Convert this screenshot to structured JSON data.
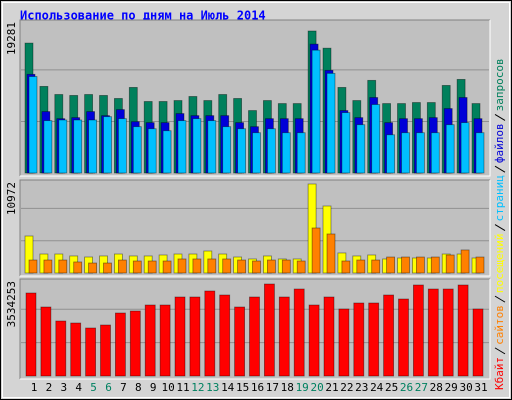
{
  "chart_data": [
    {
      "type": "bar",
      "title": "Использование по дням на Июль 2014",
      "ylim": [
        0,
        19281
      ],
      "yticks": [
        19281
      ],
      "series": [
        {
          "name": "запросов",
          "color": "#00805c",
          "values": [
            17640,
            11760,
            10660,
            10530,
            10660,
            10530,
            10120,
            11620,
            9710,
            9710,
            9840,
            10390,
            9840,
            10660,
            10120,
            8480,
            9840,
            9430,
            9430,
            19281,
            16950,
            11620,
            9840,
            12580,
            9430,
            9430,
            9570,
            9570,
            11890,
            12710,
            9430
          ]
        },
        {
          "name": "файлов",
          "color": "#0000d8",
          "values": [
            13400,
            8340,
            7380,
            7520,
            8340,
            7790,
            8610,
            6970,
            6840,
            6840,
            8070,
            7790,
            7790,
            7790,
            6840,
            6290,
            7380,
            7380,
            7380,
            17500,
            13940,
            8480,
            7520,
            10250,
            6840,
            7380,
            7380,
            7520,
            8750,
            10250,
            7380
          ]
        },
        {
          "name": "страниц",
          "color": "#00c0ff",
          "values": [
            13100,
            7110,
            7200,
            7200,
            7200,
            7650,
            7380,
            6290,
            6010,
            5740,
            7110,
            7380,
            7110,
            6290,
            6010,
            5470,
            6010,
            5470,
            5470,
            16680,
            13530,
            8200,
            6560,
            9300,
            5190,
            5470,
            5470,
            5470,
            6560,
            6840,
            5470
          ]
        }
      ]
    },
    {
      "type": "bar",
      "ylim": [
        0,
        10972
      ],
      "yticks": [
        10972
      ],
      "series": [
        {
          "name": "посещений",
          "color": "#ffff00",
          "values": [
            4560,
            2340,
            2340,
            2100,
            1970,
            2100,
            2340,
            2100,
            2100,
            2220,
            2340,
            2340,
            2710,
            2340,
            1970,
            1730,
            2100,
            1730,
            1730,
            10972,
            8260,
            2470,
            2100,
            2220,
            1730,
            1850,
            1850,
            1850,
            2340,
            2340,
            1850
          ]
        },
        {
          "name": "сайтов",
          "color": "#ff8000",
          "values": [
            1600,
            1600,
            1600,
            1360,
            1230,
            1230,
            1600,
            1480,
            1480,
            1480,
            1730,
            1730,
            1730,
            1730,
            1600,
            1480,
            1600,
            1600,
            1480,
            5550,
            4810,
            1480,
            1600,
            1600,
            1970,
            1970,
            1970,
            1970,
            2220,
            2840,
            1970
          ]
        }
      ]
    },
    {
      "type": "bar",
      "ylim": [
        0,
        3534253
      ],
      "yticks": [
        3534253
      ],
      "categories": [
        "1",
        "2",
        "3",
        "4",
        "5",
        "6",
        "7",
        "8",
        "9",
        "10",
        "11",
        "12",
        "13",
        "14",
        "15",
        "16",
        "17",
        "18",
        "19",
        "20",
        "21",
        "22",
        "23",
        "24",
        "25",
        "26",
        "27",
        "28",
        "29",
        "30",
        "31"
      ],
      "category_colors": [
        "#000000",
        "#000000",
        "#000000",
        "#000000",
        "#008060",
        "#008060",
        "#000000",
        "#000000",
        "#000000",
        "#000000",
        "#000000",
        "#008060",
        "#008060",
        "#000000",
        "#000000",
        "#000000",
        "#000000",
        "#000000",
        "#008060",
        "#008060",
        "#000000",
        "#000000",
        "#000000",
        "#000000",
        "#000000",
        "#008060",
        "#008060",
        "#000000",
        "#000000",
        "#000000",
        "#000000"
      ],
      "series": [
        {
          "name": "Кбайт",
          "color": "#ff0000",
          "values": [
            3188600,
            2650700,
            2112900,
            2036000,
            1844000,
            1959200,
            2420200,
            2497000,
            2727500,
            2727500,
            3034900,
            3034900,
            3265400,
            3111700,
            2650700,
            3034900,
            3534253,
            3034900,
            3342200,
            2727500,
            3034900,
            2573900,
            2804400,
            2804400,
            3111700,
            2958000,
            3495900,
            3342200,
            3342200,
            3495900,
            2573900
          ]
        }
      ]
    }
  ]
}
